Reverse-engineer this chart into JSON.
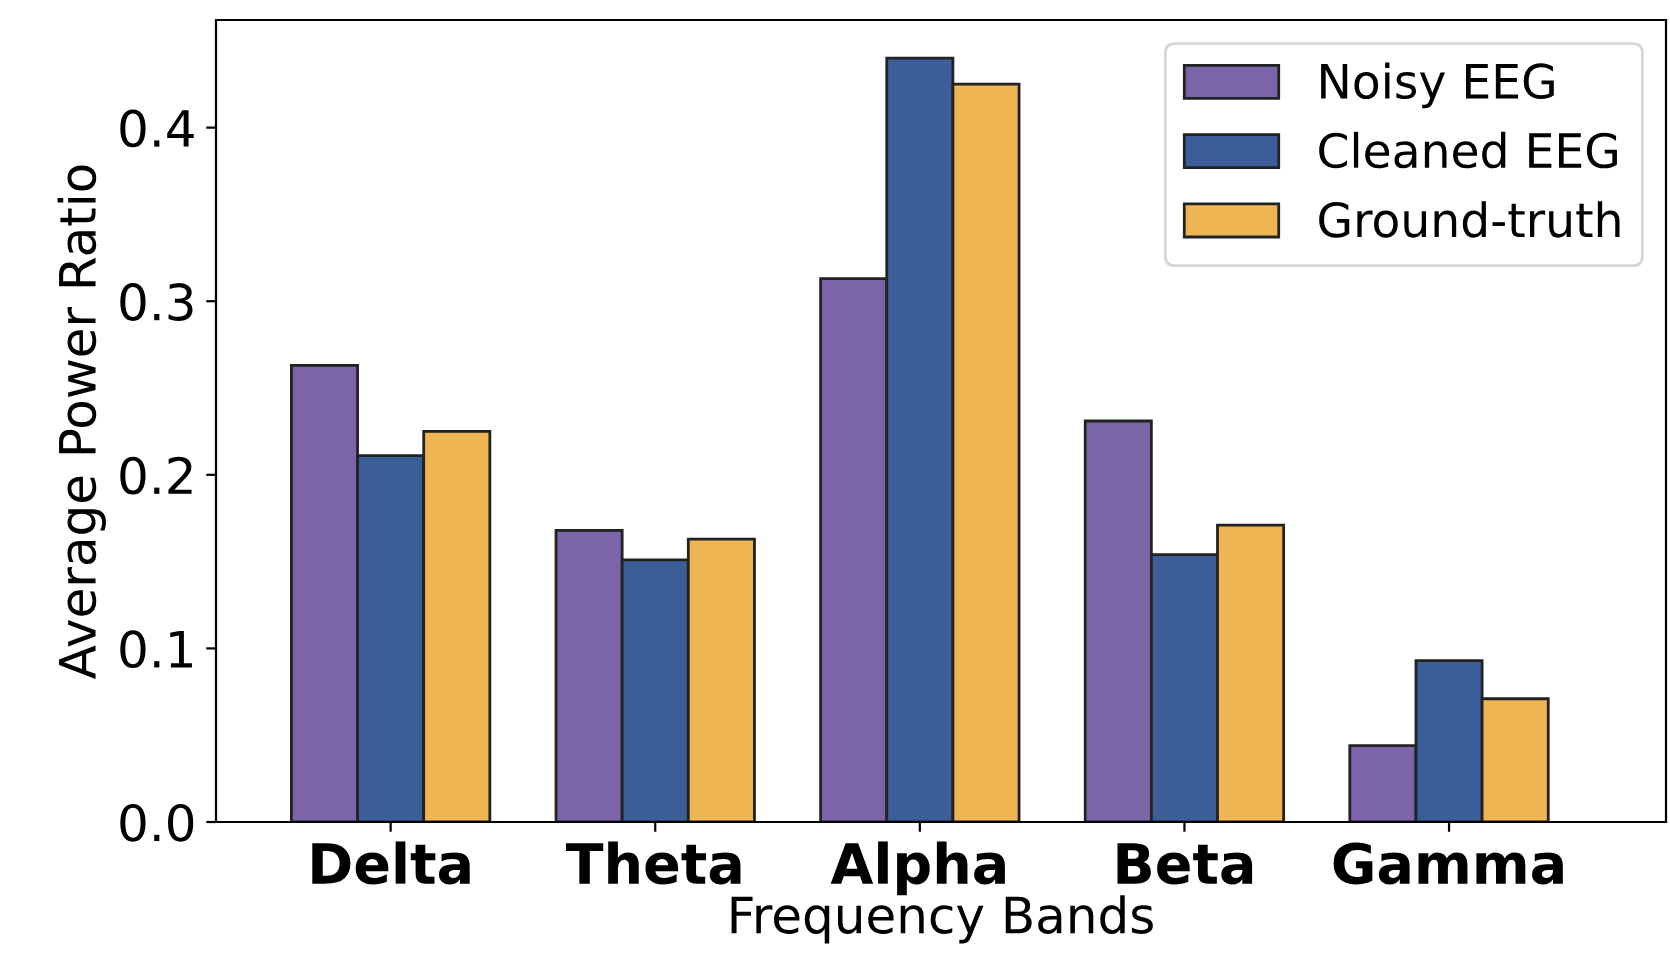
{
  "chart_data": {
    "type": "bar",
    "xlabel": "Frequency Bands",
    "ylabel": "Average Power Ratio",
    "categories": [
      "Delta",
      "Theta",
      "Alpha",
      "Beta",
      "Gamma"
    ],
    "series": [
      {
        "name": "Noisy EEG",
        "color": "#7b64a8",
        "values": [
          0.263,
          0.168,
          0.313,
          0.231,
          0.044
        ]
      },
      {
        "name": "Cleaned EEG",
        "color": "#3c5e98",
        "values": [
          0.211,
          0.151,
          0.44,
          0.154,
          0.093
        ]
      },
      {
        "name": "Ground-truth",
        "color": "#efb552",
        "values": [
          0.225,
          0.163,
          0.425,
          0.171,
          0.071
        ]
      }
    ],
    "ylim": [
      0,
      0.462
    ],
    "yticks": [
      {
        "value": 0,
        "label": "0.0"
      },
      0.1,
      0.2,
      0.3,
      0.4
    ],
    "grid": false,
    "legend": "top right"
  }
}
